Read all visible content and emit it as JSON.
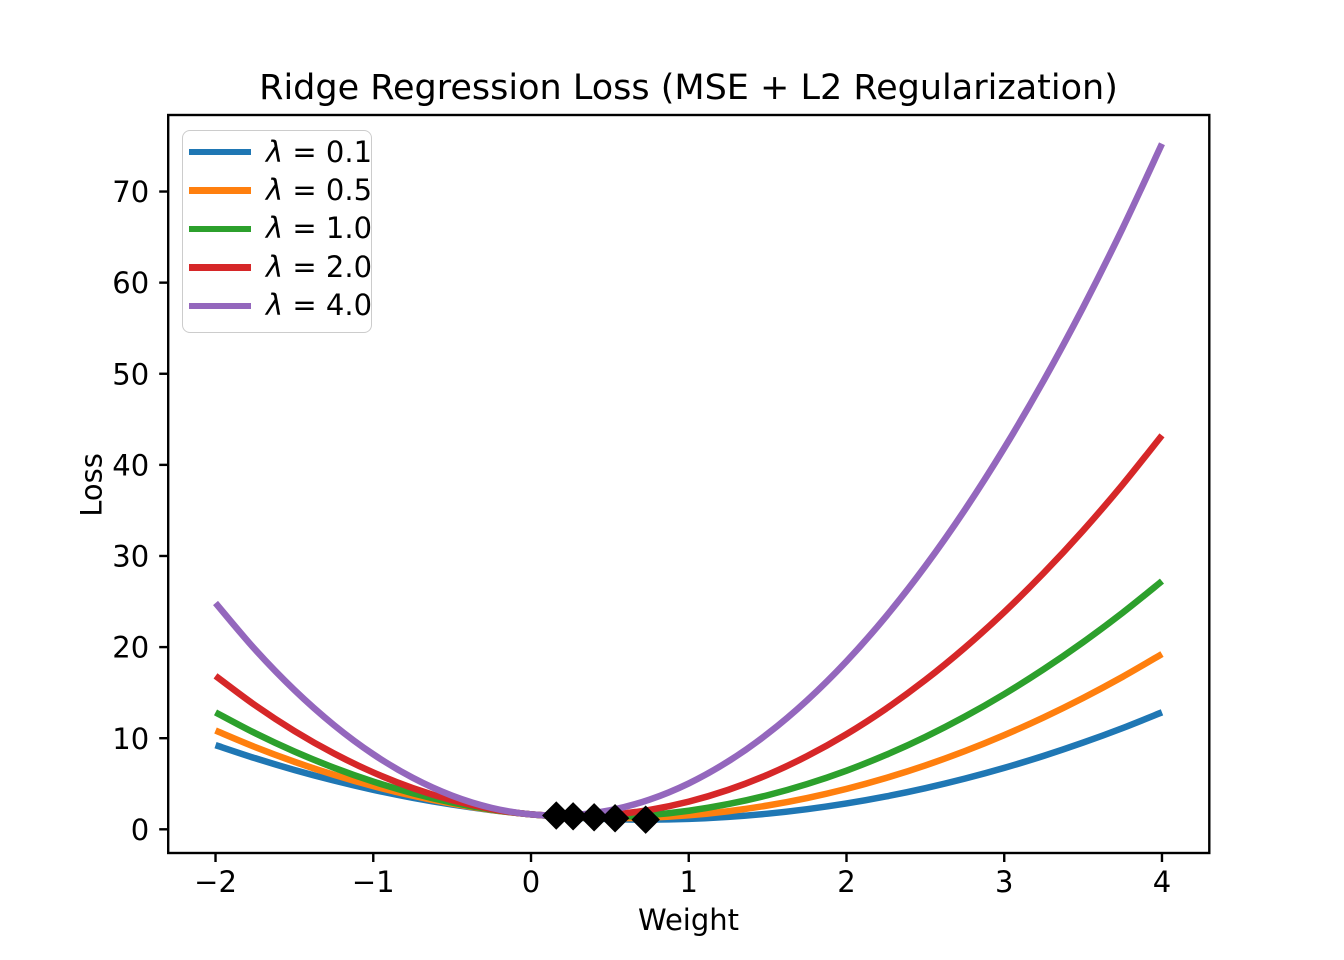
{
  "chart_data": {
    "type": "line",
    "title": "Ridge Regression Loss (MSE + L2 Regularization)",
    "xlabel": "Weight",
    "ylabel": "Loss",
    "xlim": [
      -2.3,
      4.3
    ],
    "ylim": [
      -2.6,
      78.4
    ],
    "grid": false,
    "legend_position": "upper-left",
    "xticks": [
      -2,
      -1,
      0,
      1,
      2,
      3,
      4
    ],
    "xtick_labels": [
      "−2",
      "−1",
      "0",
      "1",
      "2",
      "3",
      "4"
    ],
    "yticks": [
      0,
      10,
      20,
      30,
      40,
      50,
      60,
      70
    ],
    "ytick_labels": [
      "0",
      "10",
      "20",
      "30",
      "40",
      "50",
      "60",
      "70"
    ],
    "x": [
      -2,
      -1.75,
      -1.5,
      -1.25,
      -1,
      -0.75,
      -0.5,
      -0.25,
      0,
      0.25,
      0.5,
      0.75,
      1,
      1.25,
      1.5,
      1.75,
      2,
      2.25,
      2.5,
      2.75,
      3,
      3.25,
      3.5,
      3.75,
      4
    ],
    "series": [
      {
        "name": "λ = 0.1",
        "color": "#1f77b4",
        "values": [
          9.24,
          7.809,
          6.515,
          5.359,
          4.34,
          3.459,
          2.715,
          2.109,
          1.64,
          1.309,
          1.115,
          1.059,
          1.14,
          1.359,
          1.715,
          2.209,
          2.84,
          3.609,
          4.515,
          5.559,
          6.74,
          8.059,
          9.515,
          11.109,
          12.84
        ]
      },
      {
        "name": "λ = 0.5",
        "color": "#ff7f0e",
        "values": [
          10.84,
          9.034,
          7.415,
          5.984,
          4.74,
          3.684,
          2.815,
          2.134,
          1.64,
          1.334,
          1.215,
          1.284,
          1.54,
          1.984,
          2.615,
          3.434,
          4.44,
          5.634,
          7.015,
          8.584,
          10.34,
          12.284,
          14.415,
          16.734,
          19.24
        ]
      },
      {
        "name": "λ = 1.0",
        "color": "#2ca02c",
        "values": [
          12.84,
          10.565,
          8.54,
          6.765,
          5.24,
          3.965,
          2.94,
          2.165,
          1.64,
          1.365,
          1.34,
          1.565,
          2.04,
          2.765,
          3.74,
          4.965,
          6.44,
          8.165,
          10.14,
          12.365,
          14.84,
          17.565,
          20.54,
          23.765,
          27.24
        ]
      },
      {
        "name": "λ = 2.0",
        "color": "#d62728",
        "values": [
          16.84,
          13.628,
          10.79,
          8.328,
          6.24,
          4.528,
          3.19,
          2.228,
          1.64,
          1.428,
          1.59,
          2.128,
          3.04,
          4.328,
          5.99,
          8.028,
          10.44,
          13.228,
          16.39,
          19.928,
          23.84,
          28.128,
          32.79,
          37.828,
          43.24
        ]
      },
      {
        "name": "λ = 4.0",
        "color": "#9467bd",
        "values": [
          24.84,
          19.753,
          15.29,
          11.453,
          8.24,
          5.653,
          3.69,
          2.353,
          1.64,
          1.553,
          2.09,
          3.253,
          5.04,
          7.453,
          10.49,
          14.153,
          18.44,
          23.353,
          28.89,
          35.053,
          41.84,
          49.253,
          57.29,
          65.953,
          75.24
        ]
      }
    ],
    "minima_markers": {
      "marker": "diamond",
      "color": "#000000",
      "points": [
        {
          "x": 0.727,
          "y": 1.058
        },
        {
          "x": 0.533,
          "y": 1.213
        },
        {
          "x": 0.4,
          "y": 1.32
        },
        {
          "x": 0.267,
          "y": 1.427
        },
        {
          "x": 0.16,
          "y": 1.512
        }
      ]
    }
  }
}
